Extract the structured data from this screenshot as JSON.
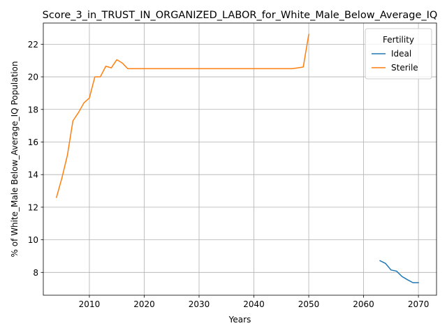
{
  "chart_data": {
    "type": "line",
    "title": "Score_3_in_TRUST_IN_ORGANIZED_LABOR_for_White_Male_Below_Average_IQ",
    "xlabel": "Years",
    "ylabel": "% of White_Male Below_Average_IQ Population",
    "xlim": [
      2001.6,
      2073.3
    ],
    "ylim": [
      6.6,
      23.3
    ],
    "xticks": [
      2010,
      2020,
      2030,
      2040,
      2050,
      2060,
      2070
    ],
    "yticks": [
      8,
      10,
      12,
      14,
      16,
      18,
      20,
      22
    ],
    "grid": true,
    "legend": {
      "title": "Fertility",
      "position": "top-right"
    },
    "series": [
      {
        "name": "Ideal",
        "color": "#1f77b4",
        "x": [
          2063,
          2064,
          2065,
          2066,
          2067,
          2068,
          2069,
          2070
        ],
        "y": [
          8.72,
          8.55,
          8.15,
          8.08,
          7.75,
          7.55,
          7.37,
          7.37
        ]
      },
      {
        "name": "Sterile",
        "color": "#ff7f0e",
        "x": [
          2004,
          2005,
          2006,
          2007,
          2008,
          2009,
          2010,
          2011,
          2012,
          2013,
          2014,
          2015,
          2016,
          2017,
          2018,
          2019,
          2020,
          2025,
          2030,
          2035,
          2040,
          2045,
          2047,
          2048,
          2049,
          2050
        ],
        "y": [
          12.6,
          13.8,
          15.2,
          17.3,
          17.8,
          18.4,
          18.7,
          20.0,
          20.0,
          20.65,
          20.55,
          21.05,
          20.85,
          20.5,
          20.5,
          20.5,
          20.5,
          20.5,
          20.5,
          20.5,
          20.5,
          20.5,
          20.5,
          20.55,
          20.6,
          22.6
        ]
      }
    ]
  }
}
